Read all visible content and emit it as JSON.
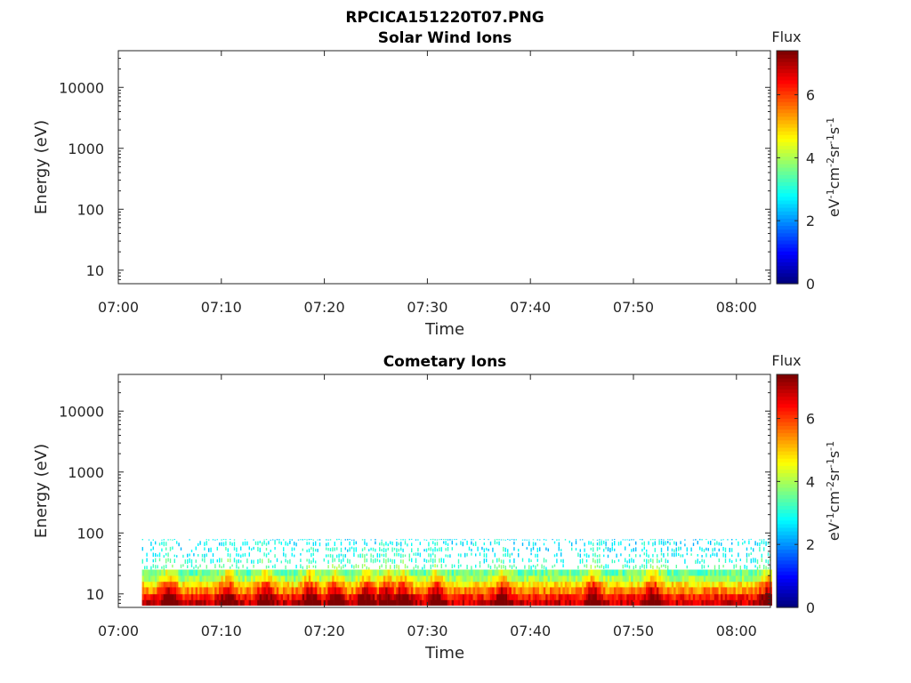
{
  "figure_title": "RPCICA151220T07.PNG",
  "chart_data": [
    {
      "type": "heatmap",
      "title": "Solar Wind Ions",
      "xlabel": "Time",
      "ylabel": "Energy (eV)",
      "x_ticks": [
        "07:00",
        "07:10",
        "07:20",
        "07:30",
        "07:40",
        "07:50",
        "08:00"
      ],
      "x_range_minutes": [
        0,
        63.3
      ],
      "y_scale": "log",
      "y_range": [
        6,
        40000
      ],
      "y_ticks": [
        10,
        100,
        1000,
        10000
      ],
      "y_tick_labels": [
        "10",
        "100",
        "1000",
        "10000"
      ],
      "colorbar": {
        "title": "Flux",
        "label": "eV-1cm-2sr-1s-1",
        "range": [
          0,
          7.4
        ],
        "ticks": [
          0,
          2,
          4,
          6
        ],
        "colormap": "jet"
      },
      "data_description": "empty (no counts)",
      "flux_grid": []
    },
    {
      "type": "heatmap",
      "title": "Cometary Ions",
      "xlabel": "Time",
      "ylabel": "Energy (eV)",
      "x_ticks": [
        "07:00",
        "07:10",
        "07:20",
        "07:30",
        "07:40",
        "07:50",
        "08:00"
      ],
      "x_range_minutes": [
        0,
        63.3
      ],
      "y_scale": "log",
      "y_range": [
        6,
        40000
      ],
      "y_ticks": [
        10,
        100,
        1000,
        10000
      ],
      "y_tick_labels": [
        "10",
        "100",
        "1000",
        "10000"
      ],
      "colorbar": {
        "title": "Flux",
        "label": "eV-1cm-2sr-1s-1",
        "range": [
          0,
          7.4
        ],
        "ticks": [
          0,
          2,
          4,
          6
        ],
        "colormap": "jet"
      },
      "data_start_minutes": 2.3,
      "energy_bins_eV": [
        6.5,
        8,
        10,
        13,
        16,
        20,
        25,
        31,
        39,
        48,
        60,
        75,
        80
      ],
      "flux_profile_by_energy": [
        6.8,
        6.3,
        5.5,
        4.8,
        4.0,
        3.5,
        3.2,
        3.0,
        2.8,
        2.7,
        2.6,
        2.6,
        2.5
      ],
      "intense_bursts_minutes": [
        4.8,
        10.5,
        14.2,
        18.5,
        21.0,
        24.0,
        26.0,
        27.5,
        30.8,
        37.2,
        46.0,
        51.8,
        63.0
      ]
    }
  ]
}
